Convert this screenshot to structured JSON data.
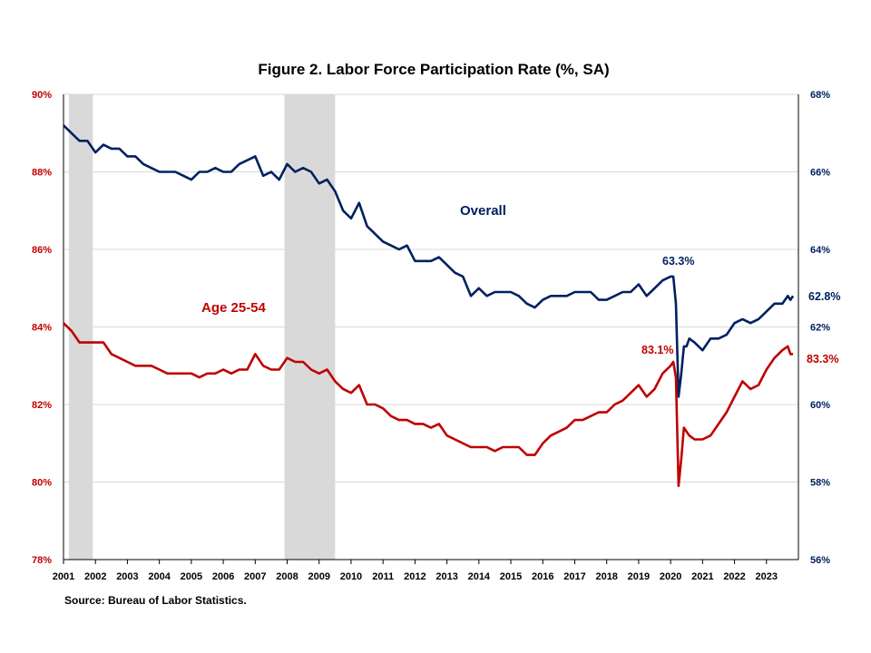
{
  "chart_data": {
    "type": "line",
    "title": "Figure 2. Labor Force Participation  Rate (%, SA)",
    "source": "Source: Bureau of Labor Statistics.",
    "x_range": [
      "2001-01",
      "2023-11"
    ],
    "x_ticks": [
      "2001",
      "2002",
      "2003",
      "2004",
      "2005",
      "2006",
      "2007",
      "2008",
      "2009",
      "2010",
      "2011",
      "2012",
      "2013",
      "2014",
      "2015",
      "2016",
      "2017",
      "2018",
      "2019",
      "2020",
      "2021",
      "2022",
      "2023"
    ],
    "y_left": {
      "min": 78,
      "max": 90,
      "step": 2,
      "ticks": [
        "78%",
        "80%",
        "82%",
        "84%",
        "86%",
        "88%",
        "90%"
      ],
      "color": "#c00000"
    },
    "y_right": {
      "min": 56,
      "max": 68,
      "step": 2,
      "ticks": [
        "56%",
        "58%",
        "60%",
        "62%",
        "64%",
        "66%",
        "68%"
      ],
      "color": "#002060"
    },
    "grid": true,
    "recessions": [
      {
        "start": "2001-03",
        "end": "2001-11"
      },
      {
        "start": "2007-12",
        "end": "2009-06"
      }
    ],
    "series": [
      {
        "name": "Overall",
        "axis": "right",
        "color": "#002060",
        "points": [
          [
            "2001-01",
            67.2
          ],
          [
            "2001-04",
            67.0
          ],
          [
            "2001-07",
            66.8
          ],
          [
            "2001-10",
            66.8
          ],
          [
            "2002-01",
            66.5
          ],
          [
            "2002-04",
            66.7
          ],
          [
            "2002-07",
            66.6
          ],
          [
            "2002-10",
            66.6
          ],
          [
            "2003-01",
            66.4
          ],
          [
            "2003-04",
            66.4
          ],
          [
            "2003-07",
            66.2
          ],
          [
            "2003-10",
            66.1
          ],
          [
            "2004-01",
            66.0
          ],
          [
            "2004-04",
            66.0
          ],
          [
            "2004-07",
            66.0
          ],
          [
            "2004-10",
            65.9
          ],
          [
            "2005-01",
            65.8
          ],
          [
            "2005-04",
            66.0
          ],
          [
            "2005-07",
            66.0
          ],
          [
            "2005-10",
            66.1
          ],
          [
            "2006-01",
            66.0
          ],
          [
            "2006-04",
            66.0
          ],
          [
            "2006-07",
            66.2
          ],
          [
            "2006-10",
            66.3
          ],
          [
            "2007-01",
            66.4
          ],
          [
            "2007-04",
            65.9
          ],
          [
            "2007-07",
            66.0
          ],
          [
            "2007-10",
            65.8
          ],
          [
            "2008-01",
            66.2
          ],
          [
            "2008-04",
            66.0
          ],
          [
            "2008-07",
            66.1
          ],
          [
            "2008-10",
            66.0
          ],
          [
            "2009-01",
            65.7
          ],
          [
            "2009-04",
            65.8
          ],
          [
            "2009-07",
            65.5
          ],
          [
            "2009-10",
            65.0
          ],
          [
            "2010-01",
            64.8
          ],
          [
            "2010-04",
            65.2
          ],
          [
            "2010-07",
            64.6
          ],
          [
            "2010-10",
            64.4
          ],
          [
            "2011-01",
            64.2
          ],
          [
            "2011-04",
            64.1
          ],
          [
            "2011-07",
            64.0
          ],
          [
            "2011-10",
            64.1
          ],
          [
            "2012-01",
            63.7
          ],
          [
            "2012-04",
            63.7
          ],
          [
            "2012-07",
            63.7
          ],
          [
            "2012-10",
            63.8
          ],
          [
            "2013-01",
            63.6
          ],
          [
            "2013-04",
            63.4
          ],
          [
            "2013-07",
            63.3
          ],
          [
            "2013-10",
            62.8
          ],
          [
            "2014-01",
            63.0
          ],
          [
            "2014-04",
            62.8
          ],
          [
            "2014-07",
            62.9
          ],
          [
            "2014-10",
            62.9
          ],
          [
            "2015-01",
            62.9
          ],
          [
            "2015-04",
            62.8
          ],
          [
            "2015-07",
            62.6
          ],
          [
            "2015-10",
            62.5
          ],
          [
            "2016-01",
            62.7
          ],
          [
            "2016-04",
            62.8
          ],
          [
            "2016-07",
            62.8
          ],
          [
            "2016-10",
            62.8
          ],
          [
            "2017-01",
            62.9
          ],
          [
            "2017-04",
            62.9
          ],
          [
            "2017-07",
            62.9
          ],
          [
            "2017-10",
            62.7
          ],
          [
            "2018-01",
            62.7
          ],
          [
            "2018-04",
            62.8
          ],
          [
            "2018-07",
            62.9
          ],
          [
            "2018-10",
            62.9
          ],
          [
            "2019-01",
            63.1
          ],
          [
            "2019-04",
            62.8
          ],
          [
            "2019-07",
            63.0
          ],
          [
            "2019-10",
            63.2
          ],
          [
            "2020-01",
            63.3
          ],
          [
            "2020-02",
            63.3
          ],
          [
            "2020-03",
            62.6
          ],
          [
            "2020-04",
            60.2
          ],
          [
            "2020-05",
            60.8
          ],
          [
            "2020-06",
            61.5
          ],
          [
            "2020-07",
            61.5
          ],
          [
            "2020-08",
            61.7
          ],
          [
            "2020-10",
            61.6
          ],
          [
            "2021-01",
            61.4
          ],
          [
            "2021-04",
            61.7
          ],
          [
            "2021-07",
            61.7
          ],
          [
            "2021-10",
            61.8
          ],
          [
            "2022-01",
            62.1
          ],
          [
            "2022-04",
            62.2
          ],
          [
            "2022-07",
            62.1
          ],
          [
            "2022-10",
            62.2
          ],
          [
            "2023-01",
            62.4
          ],
          [
            "2023-04",
            62.6
          ],
          [
            "2023-07",
            62.6
          ],
          [
            "2023-09",
            62.8
          ],
          [
            "2023-10",
            62.7
          ],
          [
            "2023-11",
            62.8
          ]
        ]
      },
      {
        "name": "Age 25-54",
        "axis": "left",
        "color": "#c00000",
        "points": [
          [
            "2001-01",
            84.1
          ],
          [
            "2001-04",
            83.9
          ],
          [
            "2001-07",
            83.6
          ],
          [
            "2001-10",
            83.6
          ],
          [
            "2002-01",
            83.6
          ],
          [
            "2002-04",
            83.6
          ],
          [
            "2002-07",
            83.3
          ],
          [
            "2002-10",
            83.2
          ],
          [
            "2003-01",
            83.1
          ],
          [
            "2003-04",
            83.0
          ],
          [
            "2003-07",
            83.0
          ],
          [
            "2003-10",
            83.0
          ],
          [
            "2004-01",
            82.9
          ],
          [
            "2004-04",
            82.8
          ],
          [
            "2004-07",
            82.8
          ],
          [
            "2004-10",
            82.8
          ],
          [
            "2005-01",
            82.8
          ],
          [
            "2005-04",
            82.7
          ],
          [
            "2005-07",
            82.8
          ],
          [
            "2005-10",
            82.8
          ],
          [
            "2006-01",
            82.9
          ],
          [
            "2006-04",
            82.8
          ],
          [
            "2006-07",
            82.9
          ],
          [
            "2006-10",
            82.9
          ],
          [
            "2007-01",
            83.3
          ],
          [
            "2007-04",
            83.0
          ],
          [
            "2007-07",
            82.9
          ],
          [
            "2007-10",
            82.9
          ],
          [
            "2008-01",
            83.2
          ],
          [
            "2008-04",
            83.1
          ],
          [
            "2008-07",
            83.1
          ],
          [
            "2008-10",
            82.9
          ],
          [
            "2009-01",
            82.8
          ],
          [
            "2009-04",
            82.9
          ],
          [
            "2009-07",
            82.6
          ],
          [
            "2009-10",
            82.4
          ],
          [
            "2010-01",
            82.3
          ],
          [
            "2010-04",
            82.5
          ],
          [
            "2010-07",
            82.0
          ],
          [
            "2010-10",
            82.0
          ],
          [
            "2011-01",
            81.9
          ],
          [
            "2011-04",
            81.7
          ],
          [
            "2011-07",
            81.6
          ],
          [
            "2011-10",
            81.6
          ],
          [
            "2012-01",
            81.5
          ],
          [
            "2012-04",
            81.5
          ],
          [
            "2012-07",
            81.4
          ],
          [
            "2012-10",
            81.5
          ],
          [
            "2013-01",
            81.2
          ],
          [
            "2013-04",
            81.1
          ],
          [
            "2013-07",
            81.0
          ],
          [
            "2013-10",
            80.9
          ],
          [
            "2014-01",
            80.9
          ],
          [
            "2014-04",
            80.9
          ],
          [
            "2014-07",
            80.8
          ],
          [
            "2014-10",
            80.9
          ],
          [
            "2015-01",
            80.9
          ],
          [
            "2015-04",
            80.9
          ],
          [
            "2015-07",
            80.7
          ],
          [
            "2015-10",
            80.7
          ],
          [
            "2016-01",
            81.0
          ],
          [
            "2016-04",
            81.2
          ],
          [
            "2016-07",
            81.3
          ],
          [
            "2016-10",
            81.4
          ],
          [
            "2017-01",
            81.6
          ],
          [
            "2017-04",
            81.6
          ],
          [
            "2017-07",
            81.7
          ],
          [
            "2017-10",
            81.8
          ],
          [
            "2018-01",
            81.8
          ],
          [
            "2018-04",
            82.0
          ],
          [
            "2018-07",
            82.1
          ],
          [
            "2018-10",
            82.3
          ],
          [
            "2019-01",
            82.5
          ],
          [
            "2019-04",
            82.2
          ],
          [
            "2019-07",
            82.4
          ],
          [
            "2019-10",
            82.8
          ],
          [
            "2020-01",
            83.0
          ],
          [
            "2020-02",
            83.1
          ],
          [
            "2020-03",
            82.7
          ],
          [
            "2020-04",
            79.9
          ],
          [
            "2020-05",
            80.6
          ],
          [
            "2020-06",
            81.4
          ],
          [
            "2020-07",
            81.3
          ],
          [
            "2020-08",
            81.2
          ],
          [
            "2020-10",
            81.1
          ],
          [
            "2021-01",
            81.1
          ],
          [
            "2021-04",
            81.2
          ],
          [
            "2021-07",
            81.5
          ],
          [
            "2021-10",
            81.8
          ],
          [
            "2022-01",
            82.2
          ],
          [
            "2022-04",
            82.6
          ],
          [
            "2022-07",
            82.4
          ],
          [
            "2022-10",
            82.5
          ],
          [
            "2023-01",
            82.9
          ],
          [
            "2023-04",
            83.2
          ],
          [
            "2023-07",
            83.4
          ],
          [
            "2023-09",
            83.5
          ],
          [
            "2023-10",
            83.3
          ],
          [
            "2023-11",
            83.3
          ]
        ]
      }
    ],
    "annotations": [
      {
        "text": "Overall",
        "series": "Overall"
      },
      {
        "text": "Age 25-54",
        "series": "Age 25-54"
      },
      {
        "text": "63.3%",
        "series": "Overall",
        "at": "2020-02"
      },
      {
        "text": "62.8%",
        "series": "Overall",
        "at": "2023-11"
      },
      {
        "text": "83.1%",
        "series": "Age 25-54",
        "at": "2020-02"
      },
      {
        "text": "83.3%",
        "series": "Age 25-54",
        "at": "2023-11"
      }
    ]
  }
}
